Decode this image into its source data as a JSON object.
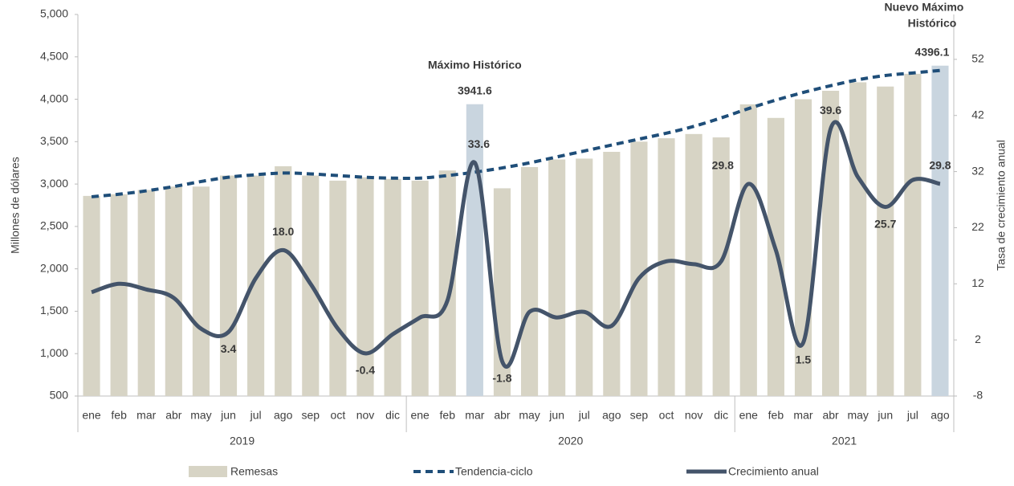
{
  "chart_data": {
    "type": "bar-line",
    "categories": [
      "ene",
      "feb",
      "mar",
      "abr",
      "may",
      "jun",
      "jul",
      "ago",
      "sep",
      "oct",
      "nov",
      "dic",
      "ene",
      "feb",
      "mar",
      "abr",
      "may",
      "jun",
      "jul",
      "ago",
      "sep",
      "oct",
      "nov",
      "dic",
      "ene",
      "feb",
      "mar",
      "abr",
      "may",
      "jun",
      "jul",
      "ago"
    ],
    "year_groups": [
      {
        "label": "2019",
        "months": 12
      },
      {
        "label": "2020",
        "months": 12
      },
      {
        "label": "2021",
        "months": 8
      }
    ],
    "ylabel": "Millones de dólares",
    "y2label": "Tasa de crecimiento anual",
    "ylim": [
      500,
      5000
    ],
    "yticks": [
      500,
      {
        "value": 1000,
        "label": "1,000"
      },
      {
        "value": 1500,
        "label": "1,500"
      },
      {
        "value": 2000,
        "label": "2,000"
      },
      {
        "value": 2500,
        "label": "2,500"
      },
      {
        "value": 3000,
        "label": "3,000"
      },
      {
        "value": 3500,
        "label": "3,500"
      },
      {
        "value": 4000,
        "label": "4,000"
      },
      {
        "value": 4500,
        "label": "4,500"
      },
      {
        "value": 5000,
        "label": "5,000"
      }
    ],
    "y2lim": [
      -8,
      60
    ],
    "y2ticks": [
      -8,
      2,
      12,
      22,
      32,
      42,
      52
    ],
    "series": [
      {
        "name": "Remesas",
        "kind": "bar",
        "color": "#d7d4c5",
        "colors": [
          "#d7d4c5",
          "#d7d4c5",
          "#d7d4c5",
          "#d7d4c5",
          "#d7d4c5",
          "#d7d4c5",
          "#d7d4c5",
          "#d7d4c5",
          "#d7d4c5",
          "#d7d4c5",
          "#d7d4c5",
          "#d7d4c5",
          "#d7d4c5",
          "#d7d4c5",
          "#c9d5df",
          "#d7d4c5",
          "#d7d4c5",
          "#d7d4c5",
          "#d7d4c5",
          "#d7d4c5",
          "#d7d4c5",
          "#d7d4c5",
          "#d7d4c5",
          "#d7d4c5",
          "#d7d4c5",
          "#d7d4c5",
          "#d7d4c5",
          "#d7d4c5",
          "#d7d4c5",
          "#d7d4c5",
          "#d7d4c5",
          "#c9d5df"
        ],
        "values": [
          2860,
          2880,
          2930,
          2970,
          2970,
          3100,
          3100,
          3210,
          3100,
          3040,
          3080,
          3060,
          3040,
          3160,
          3941.6,
          2950,
          3200,
          3290,
          3300,
          3380,
          3500,
          3540,
          3590,
          3550,
          3940,
          3780,
          4000,
          4100,
          4200,
          4150,
          4300,
          4396.1
        ],
        "annotations": [
          null,
          null,
          null,
          null,
          null,
          null,
          null,
          null,
          null,
          null,
          null,
          null,
          null,
          null,
          "Máximo Histórico",
          null,
          null,
          null,
          null,
          null,
          null,
          null,
          null,
          null,
          null,
          null,
          null,
          null,
          null,
          null,
          null,
          "Nuevo Máximo Histórico"
        ]
      },
      {
        "name": "Tendencia-ciclo",
        "kind": "dashed",
        "color": "#1f4e79",
        "values": [
          2850,
          2880,
          2920,
          2970,
          3030,
          3080,
          3110,
          3130,
          3120,
          3100,
          3080,
          3070,
          3070,
          3100,
          3140,
          3190,
          3250,
          3320,
          3390,
          3460,
          3530,
          3600,
          3680,
          3780,
          3890,
          3990,
          4080,
          4160,
          4230,
          4280,
          4310,
          4340
        ]
      },
      {
        "name": "Crecimiento anual",
        "kind": "line",
        "axis": "y2",
        "color": "#44546a",
        "values": [
          10.5,
          12,
          11,
          9.5,
          4,
          3.4,
          13,
          18,
          12,
          4,
          -0.4,
          3,
          6,
          9,
          33.6,
          -1.8,
          7,
          6,
          7,
          4.5,
          13,
          16,
          15.5,
          16,
          29.8,
          18,
          1.5,
          39.6,
          31,
          25.7,
          30.5,
          29.8
        ],
        "value_labels": [
          null,
          null,
          null,
          null,
          null,
          "3.4",
          null,
          "18.0",
          null,
          null,
          "-0.4",
          null,
          null,
          null,
          "33.6",
          "-1.8",
          null,
          null,
          null,
          null,
          null,
          null,
          null,
          null,
          "29.8",
          null,
          "1.5",
          "39.6",
          null,
          "25.7",
          null,
          "29.8"
        ]
      }
    ]
  }
}
